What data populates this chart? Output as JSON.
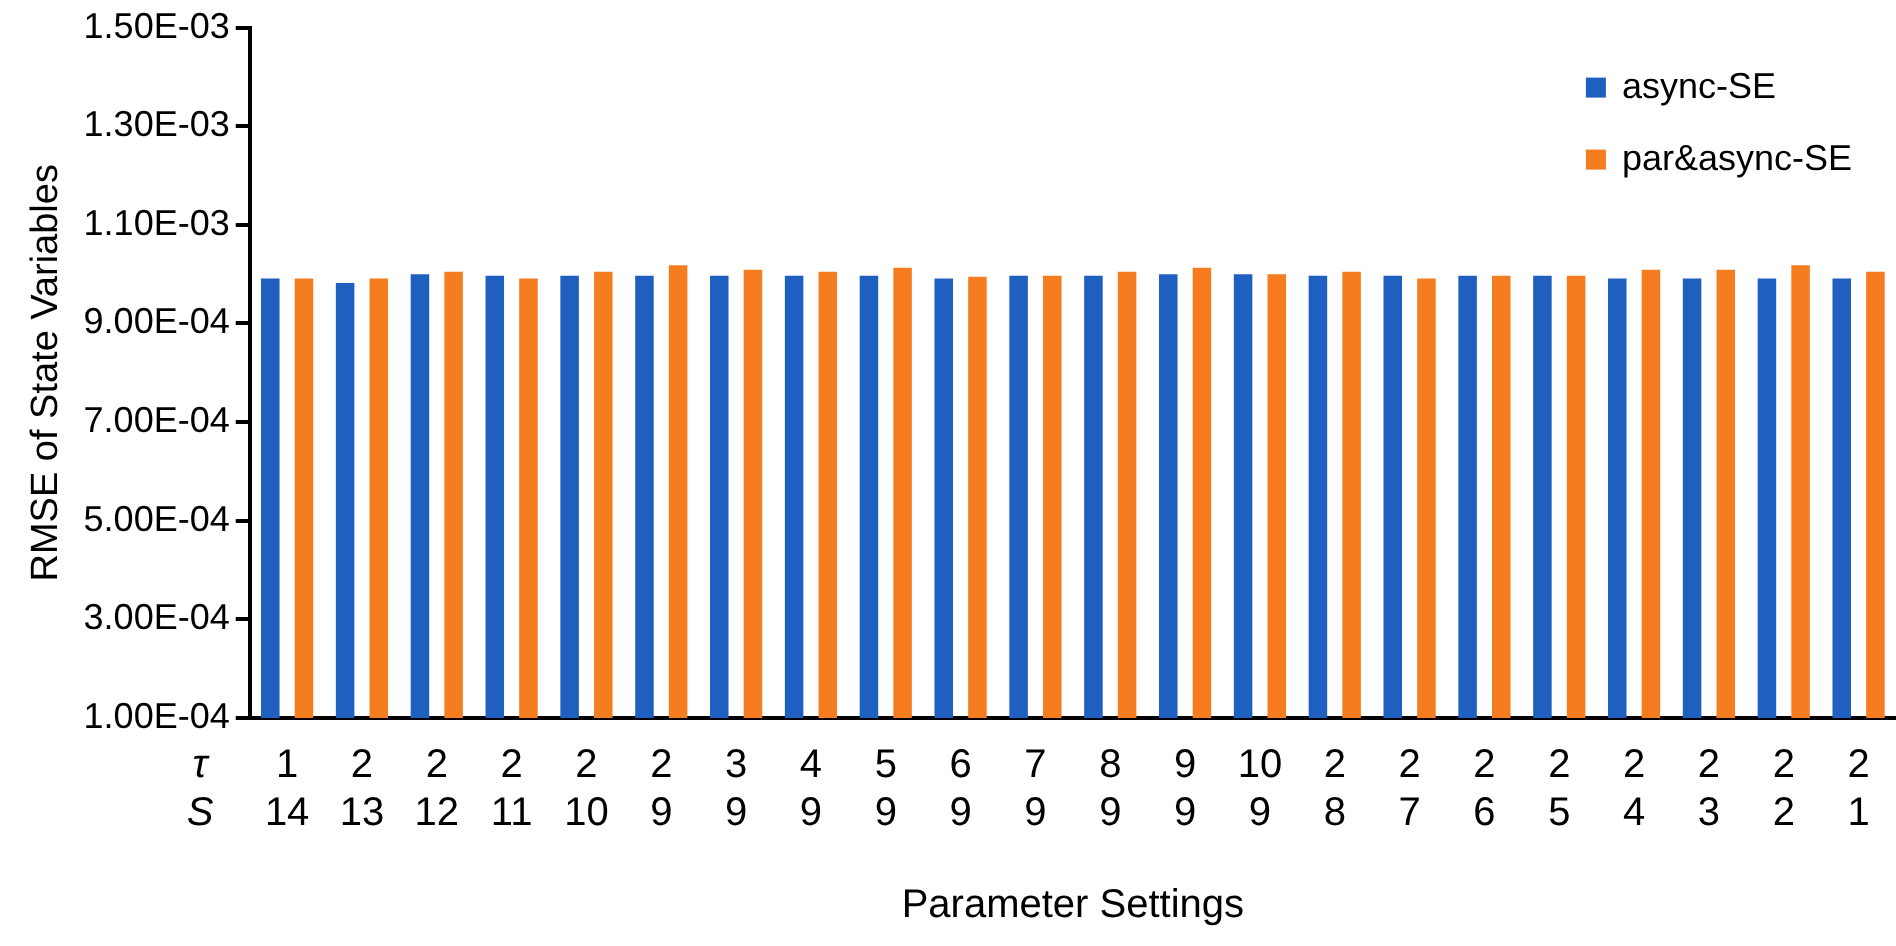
{
  "chart_data": {
    "type": "bar",
    "xlabel": "Parameter Settings",
    "ylabel": "RMSE of State Variables",
    "categories": [
      "1\n14",
      "2\n13",
      "2\n12",
      "2\n11",
      "2\n10",
      "2\n9",
      "3\n9",
      "4\n9",
      "5\n9",
      "6\n9",
      "7\n9",
      "8\n9",
      "9\n9",
      "10\n9",
      "2\n8",
      "2\n7",
      "2\n6",
      "2\n5",
      "2\n4",
      "2\n3",
      "2\n2",
      "2\n1"
    ],
    "series": [
      {
        "name": "async-SE",
        "color": "#1f5fbf",
        "values": [
          0.000991,
          0.000982,
          0.001,
          0.000997,
          0.000997,
          0.000997,
          0.000997,
          0.000997,
          0.000997,
          0.000991,
          0.000997,
          0.000997,
          0.001,
          0.001,
          0.000997,
          0.000997,
          0.000997,
          0.000997,
          0.000991,
          0.000991,
          0.000991,
          0.000991
        ]
      },
      {
        "name": "par&async-SE",
        "color": "#f57c1f",
        "values": [
          0.000991,
          0.000991,
          0.001005,
          0.000991,
          0.001005,
          0.001018,
          0.001009,
          0.001005,
          0.001013,
          0.000995,
          0.000997,
          0.001005,
          0.001013,
          0.001,
          0.001005,
          0.000991,
          0.000997,
          0.000997,
          0.001009,
          0.001009,
          0.001018,
          0.001005
        ]
      }
    ],
    "ylim": [
      0.0001,
      0.0015
    ],
    "yticks": [
      {
        "value": 0.0001,
        "label": "1.00E-04"
      },
      {
        "value": 0.0003,
        "label": "3.00E-04"
      },
      {
        "value": 0.0005,
        "label": "5.00E-04"
      },
      {
        "value": 0.0007,
        "label": "7.00E-04"
      },
      {
        "value": 0.0009,
        "label": "9.00E-04"
      },
      {
        "value": 0.0011,
        "label": "1.10E-03"
      },
      {
        "value": 0.0013,
        "label": "1.30E-03"
      },
      {
        "value": 0.0015,
        "label": "1.50E-03"
      }
    ],
    "annotations": [
      "τ",
      "S"
    ],
    "grid": false,
    "legend": "top right"
  }
}
